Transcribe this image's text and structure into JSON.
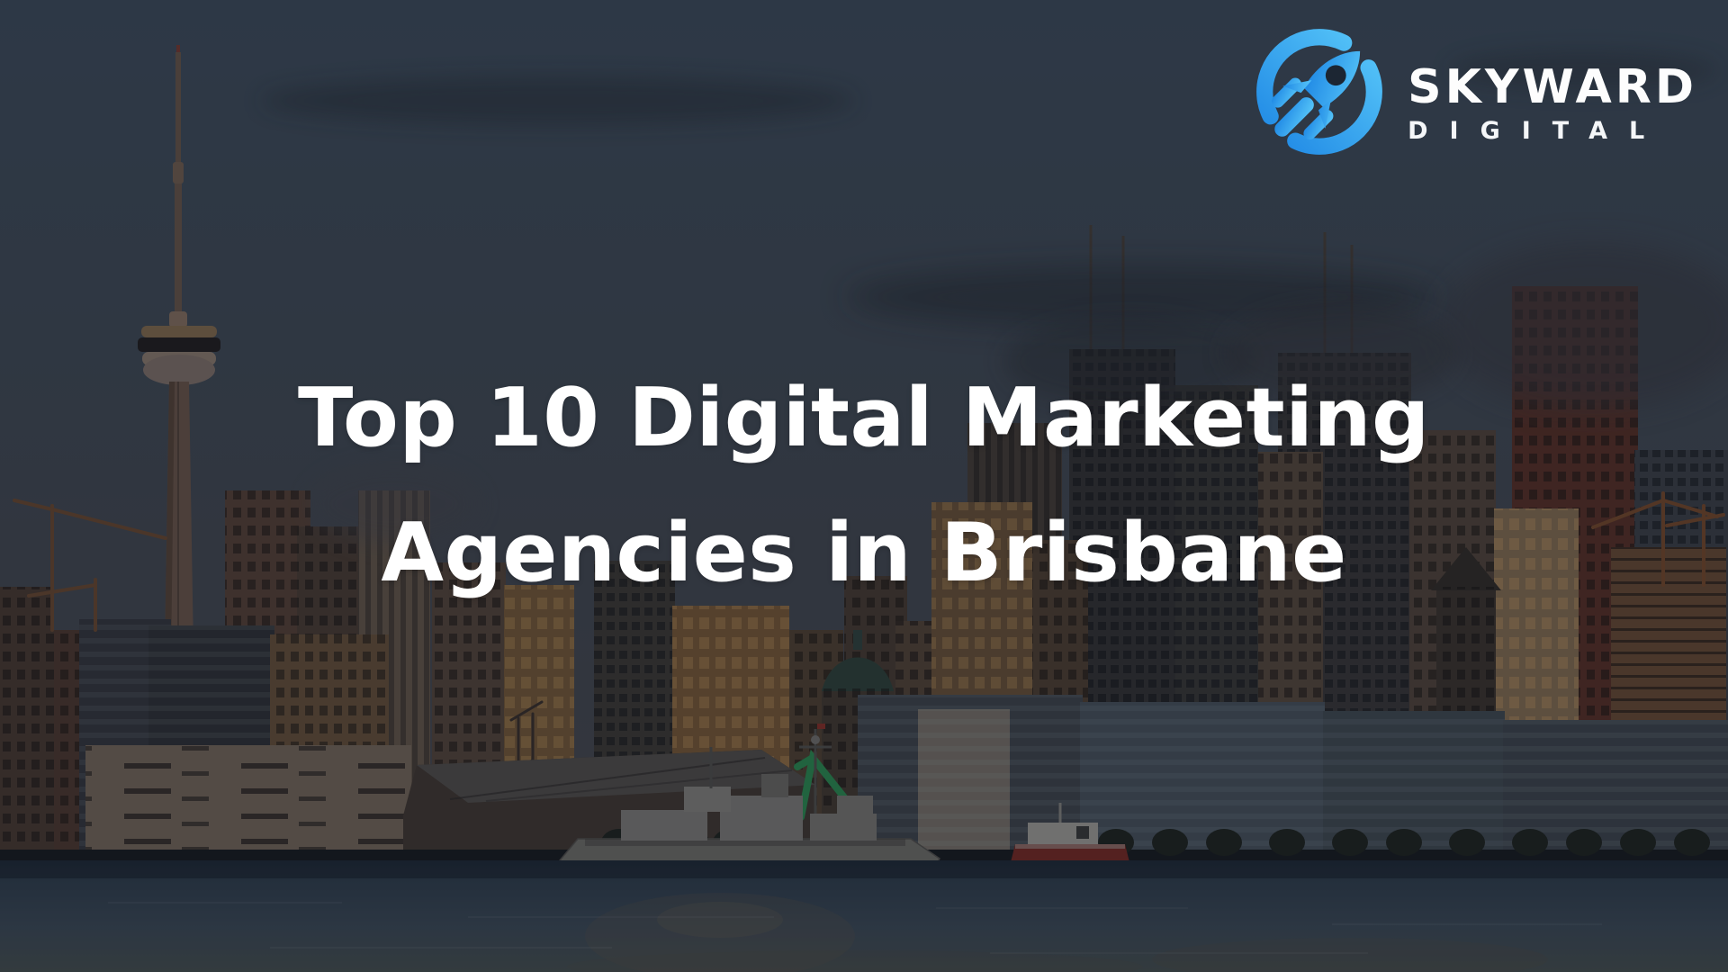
{
  "banner": {
    "title_line1": "Top 10 Digital Marketing",
    "title_line2": "Agencies in Brisbane"
  },
  "brand": {
    "name": "SKYWARD",
    "subtitle": "DIGITAL",
    "icon": "rocket-circle-icon",
    "colors": {
      "accent_light": "#58C7F9",
      "accent_dark": "#1E87E4",
      "text": "#FFFFFF"
    }
  },
  "scene": {
    "description": "City harbour skyline at dusk (CN Tower, warm sunlit towers, docked grey warship) behind a dark overlay",
    "colors": {
      "sky_top": "#3F4E5C",
      "sky_bottom": "#4B4A4C",
      "water": "#2B3A48",
      "sunlit_buildings": "#7D5C34",
      "overlay": "rgba(14,20,32,0.36)"
    }
  }
}
